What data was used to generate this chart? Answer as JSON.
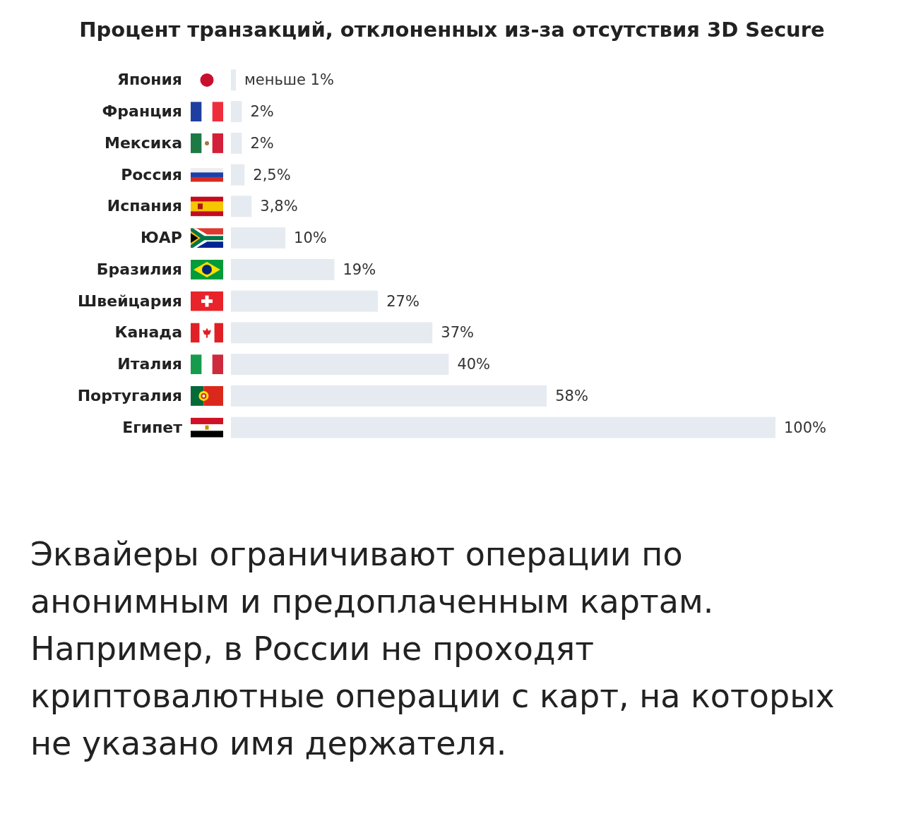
{
  "chart_data": {
    "type": "bar",
    "orientation": "horizontal",
    "title": "Процент транзакций, отклоненных из-за отсутствия 3D Secure",
    "categories": [
      "Япония",
      "Франция",
      "Мексика",
      "Россия",
      "Испания",
      "ЮАР",
      "Бразилия",
      "Швейцария",
      "Канада",
      "Италия",
      "Португалия",
      "Египет"
    ],
    "values": [
      0.9,
      2,
      2,
      2.5,
      3.8,
      10,
      19,
      27,
      37,
      40,
      58,
      100
    ],
    "value_labels": [
      "меньше 1%",
      "2%",
      "2%",
      "2,5%",
      "3,8%",
      "10%",
      "19%",
      "27%",
      "37%",
      "40%",
      "58%",
      "100%"
    ],
    "color": "#e6ebf1",
    "tick_labels": "y",
    "annotations": [
      "Эквайеры ограничивают операции по анонимным и предоплаченным картам. Например, в России не проходят криптовалютные операции с карт, на которых не указано имя держателя."
    ]
  }
}
